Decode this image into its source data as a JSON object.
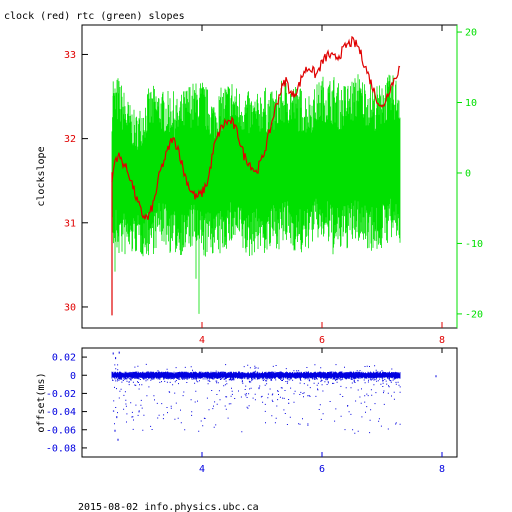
{
  "title": "clock (red) rtc (green) slopes",
  "footer": "2015-08-02 info.physics.ubc.ca",
  "colors": {
    "clock": "#e00000",
    "rtc": "#00e000",
    "offset": "#0000e0",
    "frame": "#000000"
  },
  "chart_data": [
    {
      "type": "line",
      "ylabel": "clockslope",
      "xlim": [
        2.0,
        8.25
      ],
      "xticks": [
        "4",
        "6",
        "8"
      ],
      "ylim_left": [
        29.75,
        33.35
      ],
      "yticks_left": [
        "30",
        "31",
        "32",
        "33"
      ],
      "ylim_right": [
        -22,
        21
      ],
      "yticks_right": [
        "-20",
        "-10",
        "0",
        "10",
        "20"
      ],
      "series": [
        {
          "name": "clock",
          "axis": "left",
          "x": [
            2.5,
            2.55,
            2.6,
            2.65,
            2.7,
            2.8,
            2.9,
            3.0,
            3.1,
            3.2,
            3.3,
            3.4,
            3.5,
            3.6,
            3.7,
            3.8,
            3.9,
            4.0,
            4.1,
            4.2,
            4.3,
            4.4,
            4.5,
            4.6,
            4.7,
            4.8,
            4.9,
            5.0,
            5.1,
            5.2,
            5.3,
            5.4,
            5.5,
            5.6,
            5.7,
            5.8,
            5.9,
            6.0,
            6.1,
            6.2,
            6.3,
            6.4,
            6.5,
            6.6,
            6.7,
            6.8,
            6.9,
            7.0,
            7.1,
            7.2,
            7.3
          ],
          "values": [
            31.5,
            31.75,
            31.8,
            31.75,
            31.7,
            31.55,
            31.3,
            31.1,
            31.05,
            31.25,
            31.6,
            31.8,
            32.0,
            31.9,
            31.6,
            31.4,
            31.3,
            31.35,
            31.5,
            31.9,
            32.1,
            32.2,
            32.2,
            32.05,
            31.8,
            31.7,
            31.6,
            31.75,
            32.0,
            32.3,
            32.55,
            32.7,
            32.5,
            32.6,
            32.8,
            32.85,
            32.75,
            32.9,
            33.0,
            32.95,
            33.0,
            33.1,
            33.15,
            33.1,
            32.9,
            32.7,
            32.5,
            32.35,
            32.55,
            32.7,
            32.85
          ]
        },
        {
          "name": "rtc",
          "axis": "right",
          "x": [
            2.5,
            2.6,
            2.7,
            2.8,
            2.9,
            3.0,
            3.1,
            3.2,
            3.3,
            3.4,
            3.5,
            3.6,
            3.7,
            3.8,
            3.9,
            4.0,
            4.1,
            4.2,
            4.3,
            4.4,
            4.5,
            4.6,
            4.7,
            4.8,
            4.9,
            5.0,
            5.1,
            5.2,
            5.3,
            5.4,
            5.5,
            5.6,
            5.7,
            5.8,
            5.9,
            6.0,
            6.1,
            6.2,
            6.3,
            6.4,
            6.5,
            6.6,
            6.7,
            6.8,
            6.9,
            7.0,
            7.1,
            7.2,
            7.3
          ],
          "values": [
            0.5,
            1.0,
            0.0,
            -1.0,
            -1.5,
            -1.0,
            0.0,
            0.5,
            1.0,
            0.5,
            0.0,
            -0.5,
            0.0,
            1.0,
            1.0,
            0.5,
            0.0,
            -0.5,
            0.0,
            1.0,
            1.5,
            1.0,
            0.0,
            -0.5,
            0.0,
            0.5,
            0.0,
            0.5,
            1.0,
            1.5,
            1.0,
            0.5,
            0.0,
            0.5,
            1.5,
            2.0,
            1.5,
            1.0,
            0.5,
            1.0,
            1.5,
            2.0,
            1.5,
            1.0,
            0.5,
            1.0,
            2.0,
            2.0,
            1.5
          ],
          "spread": [
            12,
            13,
            12,
            11,
            10,
            11,
            12,
            12,
            11,
            11,
            12,
            11,
            12,
            12,
            12,
            13,
            12,
            11,
            12,
            12,
            12,
            11,
            12,
            12,
            11,
            12,
            12,
            11,
            12,
            12,
            12,
            12,
            12,
            11,
            11,
            12,
            12,
            13,
            12,
            12,
            12,
            12,
            12,
            12,
            12,
            12,
            12,
            12,
            12
          ]
        }
      ],
      "grid": false,
      "legend": "none"
    },
    {
      "type": "scatter",
      "ylabel": "offset(ms)",
      "xlim": [
        2.0,
        8.25
      ],
      "xticks": [
        "4",
        "6",
        "8"
      ],
      "ylim": [
        -0.09,
        0.03
      ],
      "yticks": [
        "0.02",
        "0",
        "-0.02",
        "-0.04",
        "-0.06",
        "-0.08"
      ],
      "series": [
        {
          "name": "offset",
          "x_range": [
            2.5,
            7.3
          ],
          "band": [
            -0.003,
            0.003
          ],
          "outlier_min": -0.07
        }
      ],
      "grid": false,
      "legend": "none"
    }
  ]
}
